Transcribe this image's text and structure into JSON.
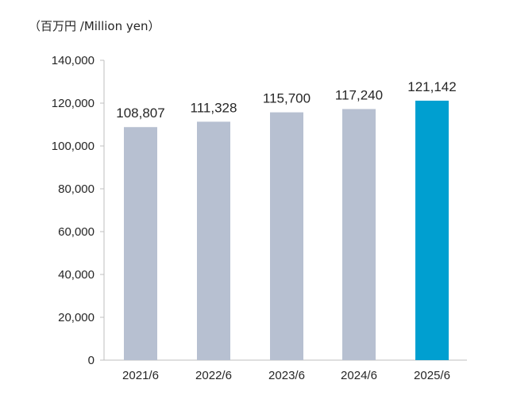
{
  "unit_label": "（百万円 /Million yen）",
  "colors": {
    "default_bar": "#b7c0d1",
    "highlight_bar": "#009fd0",
    "axis": "#bfbfbf",
    "text": "#262626"
  },
  "chart_data": {
    "type": "bar",
    "categories": [
      "2021/6",
      "2022/6",
      "2023/6",
      "2024/6",
      "2025/6"
    ],
    "values": [
      108807,
      111328,
      115700,
      117240,
      121142
    ],
    "value_labels": [
      "108,807",
      "111,328",
      "115,700",
      "117,240",
      "121,142"
    ],
    "highlight_index": 4,
    "ylim": [
      0,
      140000
    ],
    "yticks": [
      0,
      20000,
      40000,
      60000,
      80000,
      100000,
      120000,
      140000
    ],
    "ytick_labels": [
      "0",
      "20,000",
      "40,000",
      "60,000",
      "80,000",
      "100,000",
      "120,000",
      "140,000"
    ],
    "grid": false,
    "legend": "none"
  }
}
